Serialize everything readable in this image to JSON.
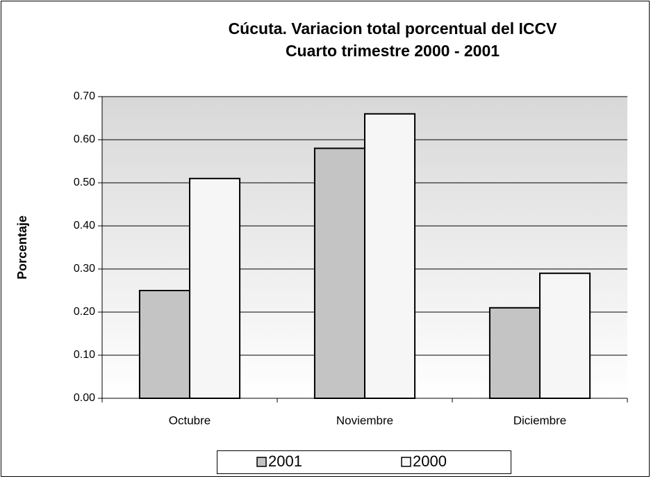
{
  "chart_data": {
    "type": "bar",
    "title": "Cúcuta. Variacion total porcentual del ICCV",
    "subtitle": "Cuarto trimestre  2000 - 2001",
    "y_label": "Porcentaje",
    "categories": [
      "Octubre",
      "Noviembre",
      "Diciembre"
    ],
    "series": [
      {
        "name": "2001",
        "color": "#c4c4c4",
        "values": [
          0.25,
          0.58,
          0.21
        ]
      },
      {
        "name": "2000",
        "color": "#f6f6f6",
        "values": [
          0.51,
          0.66,
          0.29
        ]
      }
    ],
    "ylim": [
      0,
      0.7
    ],
    "yticks": [
      {
        "value": 0,
        "label": "0.00"
      },
      {
        "value": 0.1,
        "label": "0.10"
      },
      {
        "value": 0.2,
        "label": "0.20"
      },
      {
        "value": 0.3,
        "label": "0.30"
      },
      {
        "value": 0.4,
        "label": "0.40"
      },
      {
        "value": 0.5,
        "label": "0.50"
      },
      {
        "value": 0.6,
        "label": "0.60"
      },
      {
        "value": 0.7,
        "label": "0.70"
      }
    ],
    "grid": true,
    "legend": "bottom"
  }
}
